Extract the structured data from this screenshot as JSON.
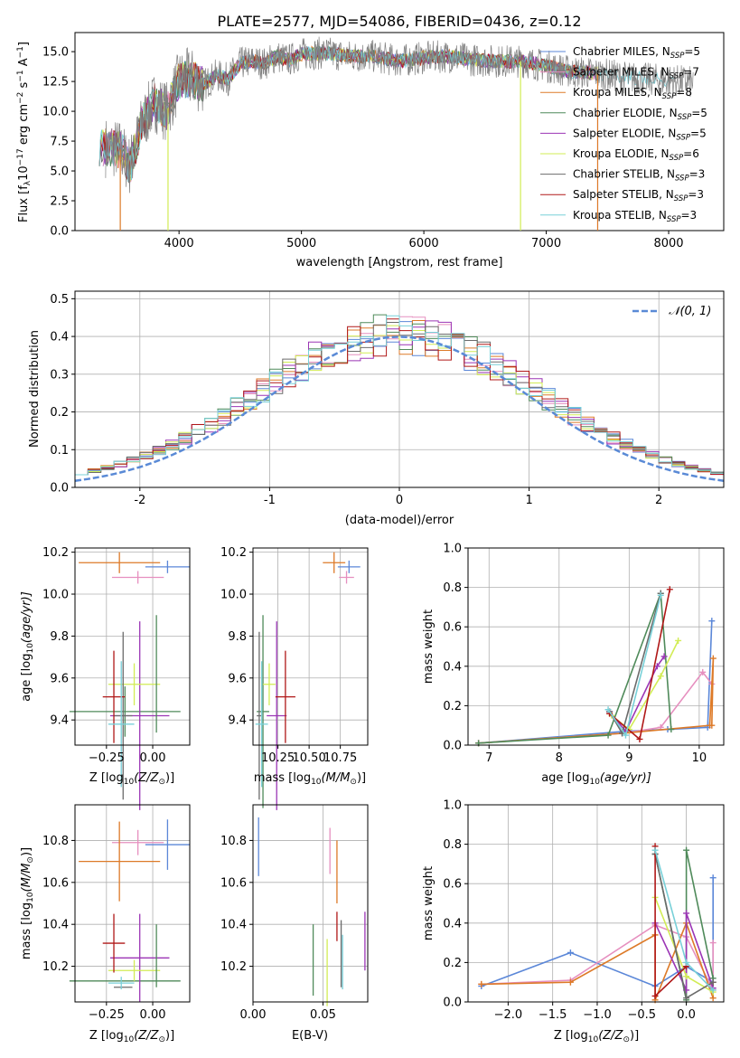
{
  "title": "PLATE=2577, MJD=54086, FIBERID=0436, z=0.12",
  "colors": {
    "chabrier_miles": "#5b87d8",
    "salpeter_miles": "#e68fbf",
    "kroupa_miles": "#dd7a28",
    "chabrier_elodie": "#4f8a5a",
    "salpeter_elodie": "#9b35b5",
    "kroupa_elodie": "#d2ec55",
    "chabrier_stelib": "#6b6b6b",
    "salpeter_stelib": "#b01818",
    "kroupa_stelib": "#78d0d8",
    "normal": "#5a8ad6"
  },
  "legend": [
    {
      "label": "Chabrier MILES, N",
      "sub": "SSP",
      "tail": "=5",
      "color": "#5b87d8"
    },
    {
      "label": "Salpeter MILES, N",
      "sub": "SSP",
      "tail": "=7",
      "color": "#e68fbf"
    },
    {
      "label": "Kroupa MILES, N",
      "sub": "SSP",
      "tail": "=8",
      "color": "#dd7a28"
    },
    {
      "label": "Chabrier ELODIE, N",
      "sub": "SSP",
      "tail": "=5",
      "color": "#4f8a5a"
    },
    {
      "label": "Salpeter ELODIE, N",
      "sub": "SSP",
      "tail": "=5",
      "color": "#9b35b5"
    },
    {
      "label": "Kroupa ELODIE, N",
      "sub": "SSP",
      "tail": "=6",
      "color": "#d2ec55"
    },
    {
      "label": "Chabrier STELIB, N",
      "sub": "SSP",
      "tail": "=3",
      "color": "#6b6b6b"
    },
    {
      "label": "Salpeter STELIB, N",
      "sub": "SSP",
      "tail": "=3",
      "color": "#b01818"
    },
    {
      "label": "Kroupa STELIB, N",
      "sub": "SSP",
      "tail": "=3",
      "color": "#78d0d8"
    }
  ],
  "chart_data": [
    {
      "type": "line",
      "xlabel": "wavelength [Angstrom, rest frame]",
      "ylabel": "Flux [f",
      "ylabel_sub": "λ",
      "ylabel_rest": "10",
      "ylabel_sup1": "−17",
      "ylabel_mid": " erg cm",
      "ylabel_sup2": "−2",
      "ylabel_mid2": " s",
      "ylabel_sup3": "−1",
      "ylabel_end": " A",
      "ylabel_sup4": "−1",
      "ylabel_close": "]",
      "xlim": [
        3150,
        8450
      ],
      "ylim": [
        0,
        16.6
      ],
      "xticks": [
        4000,
        5000,
        6000,
        7000,
        8000
      ],
      "yticks": [
        0.0,
        2.5,
        5.0,
        7.5,
        10.0,
        12.5,
        15.0
      ],
      "data_x": [
        3400,
        3520,
        3600,
        3700,
        3800,
        3900,
        4000,
        4100,
        4200,
        4300,
        4400,
        4500,
        4600,
        4700,
        4800,
        4900,
        5000,
        5200,
        5400,
        5600,
        5800,
        6000,
        6200,
        6400,
        6600,
        6800,
        7000,
        7200,
        7400,
        7600,
        7800,
        8000,
        8200
      ],
      "data_y": [
        7.0,
        6.8,
        5.4,
        9.0,
        10.8,
        10.0,
        12.6,
        12.8,
        12.2,
        13.0,
        12.7,
        14.0,
        14.2,
        14.0,
        14.6,
        14.3,
        14.8,
        14.9,
        14.6,
        14.6,
        14.2,
        14.5,
        14.6,
        14.3,
        14.2,
        14.2,
        13.8,
        13.3,
        13.2,
        12.9,
        12.7,
        12.6,
        12.4
      ],
      "model_start": [
        3380,
        3380,
        3500,
        3350,
        3350,
        3350,
        3350,
        3350,
        3350
      ],
      "model_end": [
        7420,
        7420,
        7420,
        7420,
        7420,
        7420,
        7420,
        7420,
        8050
      ],
      "drop_lines": [
        {
          "x": 3520,
          "color": "#dd7a28"
        },
        {
          "x": 3910,
          "color": "#d2ec55"
        },
        {
          "x": 6790,
          "color": "#d2ec55"
        },
        {
          "x": 7420,
          "color": "#dd7a28"
        }
      ]
    },
    {
      "type": "histogram",
      "xlabel": "(data-model)/error",
      "ylabel": "Normed distribution",
      "xlim": [
        -2.5,
        2.5
      ],
      "ylim": [
        0,
        0.52
      ],
      "xticks": [
        -2,
        -1,
        0,
        1,
        2
      ],
      "yticks": [
        0.0,
        0.1,
        0.2,
        0.3,
        0.4,
        0.5
      ],
      "legend_label": "𝒩(0, 1)",
      "bin_width": 0.1
    },
    {
      "type": "scatter",
      "xlabel": "Z [log",
      "xlabel_sub": "10",
      "xlabel_rest": "(Z/Z",
      "xlabel_sub2": "⊙",
      "xlabel_end": ")]",
      "ylabel": "age  [log",
      "ylabel_sub": "10",
      "ylabel_rest": "(age/yr)]",
      "xlim": [
        -0.42,
        0.2
      ],
      "ylim": [
        9.28,
        10.22
      ],
      "xticks": [
        -0.25,
        0.0
      ],
      "xtick_labels": [
        "−0.25",
        "0.00"
      ],
      "yticks": [
        9.4,
        9.6,
        9.8,
        10.0,
        10.2
      ],
      "points": [
        {
          "x": 0.08,
          "xerr": 0.12,
          "y": 10.13,
          "yerr": 0.03,
          "c": "#5b87d8"
        },
        {
          "x": -0.08,
          "xerr": 0.14,
          "y": 10.08,
          "yerr": 0.03,
          "c": "#e68fbf"
        },
        {
          "x": -0.18,
          "xerr": 0.22,
          "y": 10.15,
          "yerr": 0.05,
          "c": "#dd7a28"
        },
        {
          "x": -0.15,
          "xerr": 0.3,
          "y": 9.44,
          "yerr": 0.12,
          "c": "#4f8a5a"
        },
        {
          "x": -0.07,
          "xerr": 0.16,
          "y": 9.42,
          "yerr": 0.45,
          "c": "#9b35b5"
        },
        {
          "x": -0.1,
          "xerr": 0.14,
          "y": 9.57,
          "yerr": 0.1,
          "c": "#d2ec55"
        },
        {
          "x": -0.16,
          "xerr": 0.05,
          "y": 9.42,
          "yerr": 0.4,
          "c": "#6b6b6b"
        },
        {
          "x": -0.21,
          "xerr": 0.06,
          "y": 9.51,
          "yerr": 0.22,
          "c": "#b01818"
        },
        {
          "x": -0.17,
          "xerr": 0.07,
          "y": 9.38,
          "yerr": 0.3,
          "c": "#78d0d8"
        },
        {
          "x": 0.02,
          "xerr": 0.0,
          "y": 9.62,
          "yerr": 0.28,
          "c": "#4f8a5a"
        }
      ]
    },
    {
      "type": "scatter",
      "xlabel": "mass [log",
      "xlabel_sub": "10",
      "xlabel_rest": "(M/M",
      "xlabel_sub2": "⊙",
      "xlabel_end": ")]",
      "xlim": [
        10.05,
        10.97
      ],
      "ylim": [
        9.28,
        10.22
      ],
      "xticks": [
        10.25,
        10.5,
        10.75
      ],
      "xtick_labels": [
        "10.25",
        "10.50",
        "10.75"
      ],
      "yticks": [
        9.4,
        9.6,
        9.8,
        10.0,
        10.2
      ],
      "points": [
        {
          "x": 10.82,
          "xerr": 0.09,
          "y": 10.13,
          "yerr": 0.03,
          "c": "#5b87d8"
        },
        {
          "x": 10.8,
          "xerr": 0.06,
          "y": 10.08,
          "yerr": 0.03,
          "c": "#e68fbf"
        },
        {
          "x": 10.7,
          "xerr": 0.09,
          "y": 10.15,
          "yerr": 0.05,
          "c": "#dd7a28"
        },
        {
          "x": 10.13,
          "xerr": 0.05,
          "y": 9.44,
          "yerr": 0.46,
          "c": "#4f8a5a"
        },
        {
          "x": 10.24,
          "xerr": 0.08,
          "y": 9.42,
          "yerr": 0.45,
          "c": "#9b35b5"
        },
        {
          "x": 10.18,
          "xerr": 0.05,
          "y": 9.57,
          "yerr": 0.1,
          "c": "#d2ec55"
        },
        {
          "x": 10.1,
          "xerr": 0.02,
          "y": 9.42,
          "yerr": 0.4,
          "c": "#6b6b6b"
        },
        {
          "x": 10.31,
          "xerr": 0.08,
          "y": 9.51,
          "yerr": 0.22,
          "c": "#b01818"
        },
        {
          "x": 10.12,
          "xerr": 0.05,
          "y": 9.38,
          "yerr": 0.3,
          "c": "#78d0d8"
        }
      ]
    },
    {
      "type": "line",
      "xlabel": "age  [log",
      "xlabel_sub": "10",
      "xlabel_rest": "(age/yr)]",
      "ylabel": "mass weight",
      "xlim": [
        6.7,
        10.35
      ],
      "ylim": [
        0,
        1.0
      ],
      "xticks": [
        7,
        8,
        9,
        10
      ],
      "yticks": [
        0.0,
        0.2,
        0.4,
        0.6,
        0.8,
        1.0
      ],
      "series": [
        {
          "c": "#5b87d8",
          "x": [
            6.85,
            8.95,
            9.55,
            10.12,
            10.18
          ],
          "y": [
            0.01,
            0.07,
            0.08,
            0.09,
            0.63
          ]
        },
        {
          "c": "#e68fbf",
          "x": [
            6.85,
            8.9,
            9.45,
            10.05,
            10.18
          ],
          "y": [
            0.01,
            0.06,
            0.09,
            0.37,
            0.31
          ]
        },
        {
          "c": "#dd7a28",
          "x": [
            6.85,
            8.9,
            10.15,
            10.2,
            10.18
          ],
          "y": [
            0.01,
            0.06,
            0.1,
            0.44,
            0.1
          ]
        },
        {
          "c": "#4f8a5a",
          "x": [
            6.85,
            8.7,
            9.45,
            9.6
          ],
          "y": [
            0.01,
            0.05,
            0.77,
            0.08
          ]
        },
        {
          "c": "#9b35b5",
          "x": [
            8.72,
            8.95,
            9.4,
            9.5
          ],
          "y": [
            0.17,
            0.07,
            0.4,
            0.45
          ]
        },
        {
          "c": "#d2ec55",
          "x": [
            8.75,
            9.0,
            9.45,
            9.7
          ],
          "y": [
            0.15,
            0.08,
            0.35,
            0.53
          ]
        },
        {
          "c": "#6b6b6b",
          "x": [
            8.72,
            8.9,
            9.45
          ],
          "y": [
            0.17,
            0.06,
            0.77
          ]
        },
        {
          "c": "#b01818",
          "x": [
            8.72,
            9.15,
            9.58
          ],
          "y": [
            0.16,
            0.03,
            0.79
          ]
        },
        {
          "c": "#78d0d8",
          "x": [
            8.7,
            8.95,
            9.45
          ],
          "y": [
            0.18,
            0.05,
            0.76
          ]
        }
      ]
    },
    {
      "type": "scatter",
      "xlabel": "Z [log",
      "xlabel_sub": "10",
      "xlabel_rest": "(Z/Z",
      "xlabel_sub2": "⊙",
      "xlabel_end": ")]",
      "ylabel": "mass [log",
      "ylabel_sub": "10",
      "ylabel_rest": "(M/M",
      "ylabel_sub2": "⊙",
      "ylabel_end": ")]",
      "xlim": [
        -0.42,
        0.2
      ],
      "ylim": [
        10.03,
        10.97
      ],
      "xticks": [
        -0.25,
        0.0
      ],
      "xtick_labels": [
        "−0.25",
        "0.00"
      ],
      "yticks": [
        10.2,
        10.4,
        10.6,
        10.8
      ],
      "points": [
        {
          "x": 0.08,
          "xerr": 0.12,
          "y": 10.78,
          "yerr": 0.12,
          "c": "#5b87d8"
        },
        {
          "x": -0.08,
          "xerr": 0.14,
          "y": 10.79,
          "yerr": 0.06,
          "c": "#e68fbf"
        },
        {
          "x": -0.18,
          "xerr": 0.22,
          "y": 10.7,
          "yerr": 0.19,
          "c": "#dd7a28"
        },
        {
          "x": -0.15,
          "xerr": 0.3,
          "y": 10.13,
          "yerr": 0.0,
          "c": "#4f8a5a"
        },
        {
          "x": -0.07,
          "xerr": 0.16,
          "y": 10.24,
          "yerr": 0.21,
          "c": "#9b35b5"
        },
        {
          "x": -0.1,
          "xerr": 0.14,
          "y": 10.18,
          "yerr": 0.05,
          "c": "#d2ec55"
        },
        {
          "x": -0.16,
          "xerr": 0.05,
          "y": 10.1,
          "yerr": 0.0,
          "c": "#6b6b6b"
        },
        {
          "x": -0.21,
          "xerr": 0.06,
          "y": 10.31,
          "yerr": 0.14,
          "c": "#b01818"
        },
        {
          "x": -0.17,
          "xerr": 0.07,
          "y": 10.12,
          "yerr": 0.03,
          "c": "#78d0d8"
        },
        {
          "x": 0.02,
          "xerr": 0.0,
          "y": 10.25,
          "yerr": 0.15,
          "c": "#4f8a5a"
        }
      ]
    },
    {
      "type": "scatter",
      "xlabel": "E(B-V)",
      "xlim": [
        0.0,
        0.082
      ],
      "ylim": [
        10.03,
        10.97
      ],
      "xticks": [
        0.0,
        0.05
      ],
      "xtick_labels": [
        "0.00",
        "0.05"
      ],
      "yticks": [
        10.2,
        10.4,
        10.6,
        10.8
      ],
      "points": [
        {
          "x": 0.004,
          "xerr": 0,
          "y": 10.77,
          "yerr": 0.14,
          "c": "#5b87d8"
        },
        {
          "x": 0.055,
          "xerr": 0,
          "y": 10.75,
          "yerr": 0.11,
          "c": "#e68fbf"
        },
        {
          "x": 0.06,
          "xerr": 0,
          "y": 10.65,
          "yerr": 0.15,
          "c": "#dd7a28"
        },
        {
          "x": 0.043,
          "xerr": 0,
          "y": 10.23,
          "yerr": 0.17,
          "c": "#4f8a5a"
        },
        {
          "x": 0.08,
          "xerr": 0,
          "y": 10.32,
          "yerr": 0.14,
          "c": "#9b35b5"
        },
        {
          "x": 0.053,
          "xerr": 0,
          "y": 10.17,
          "yerr": 0.16,
          "c": "#d2ec55"
        },
        {
          "x": 0.063,
          "xerr": 0,
          "y": 10.26,
          "yerr": 0.16,
          "c": "#6b6b6b"
        },
        {
          "x": 0.06,
          "xerr": 0,
          "y": 10.39,
          "yerr": 0.07,
          "c": "#b01818"
        },
        {
          "x": 0.064,
          "xerr": 0,
          "y": 10.22,
          "yerr": 0.13,
          "c": "#78d0d8"
        }
      ]
    },
    {
      "type": "line",
      "xlabel": "Z [log",
      "xlabel_sub": "10",
      "xlabel_rest": "(Z/Z",
      "xlabel_sub2": "⊙",
      "xlabel_end": ")]",
      "ylabel": "mass weight",
      "xlim": [
        -2.45,
        0.42
      ],
      "ylim": [
        0,
        1.0
      ],
      "xticks": [
        -2.0,
        -1.5,
        -1.0,
        -0.5,
        0.0
      ],
      "xtick_labels": [
        "−2.0",
        "−1.5",
        "−1.0",
        "−0.5",
        "0.0"
      ],
      "yticks": [
        0.0,
        0.2,
        0.4,
        0.6,
        0.8,
        1.0
      ],
      "series": [
        {
          "c": "#5b87d8",
          "x": [
            -2.3,
            -1.3,
            -0.35,
            0.0,
            0.3,
            0.3
          ],
          "y": [
            0.08,
            0.25,
            0.08,
            0.18,
            0.1,
            0.63
          ]
        },
        {
          "c": "#e68fbf",
          "x": [
            -2.3,
            -1.3,
            -0.35,
            0.0,
            0.3,
            0.3
          ],
          "y": [
            0.09,
            0.11,
            0.39,
            0.33,
            0.06,
            0.3
          ]
        },
        {
          "c": "#dd7a28",
          "x": [
            -2.3,
            -1.3,
            -0.35,
            -0.35,
            0.0,
            0.3,
            0.3
          ],
          "y": [
            0.09,
            0.1,
            0.34,
            0.01,
            0.4,
            0.02,
            0.1
          ]
        },
        {
          "c": "#4f8a5a",
          "x": [
            -0.35,
            0.0,
            0.0,
            0.3
          ],
          "y": [
            0.75,
            0.01,
            0.77,
            0.12
          ]
        },
        {
          "c": "#9b35b5",
          "x": [
            -0.35,
            0.0,
            0.0,
            0.3
          ],
          "y": [
            0.4,
            0.06,
            0.45,
            0.07
          ]
        },
        {
          "c": "#d2ec55",
          "x": [
            -0.35,
            0.0,
            0.3
          ],
          "y": [
            0.53,
            0.13,
            0.05
          ]
        },
        {
          "c": "#6b6b6b",
          "x": [
            -0.35,
            0.0,
            0.3
          ],
          "y": [
            0.75,
            0.02,
            0.1
          ]
        },
        {
          "c": "#b01818",
          "x": [
            -0.35,
            -0.35,
            0.0
          ],
          "y": [
            0.79,
            0.03,
            0.18
          ]
        },
        {
          "c": "#78d0d8",
          "x": [
            -0.35,
            0.0,
            0.3
          ],
          "y": [
            0.77,
            0.2,
            0.06
          ]
        }
      ]
    }
  ]
}
